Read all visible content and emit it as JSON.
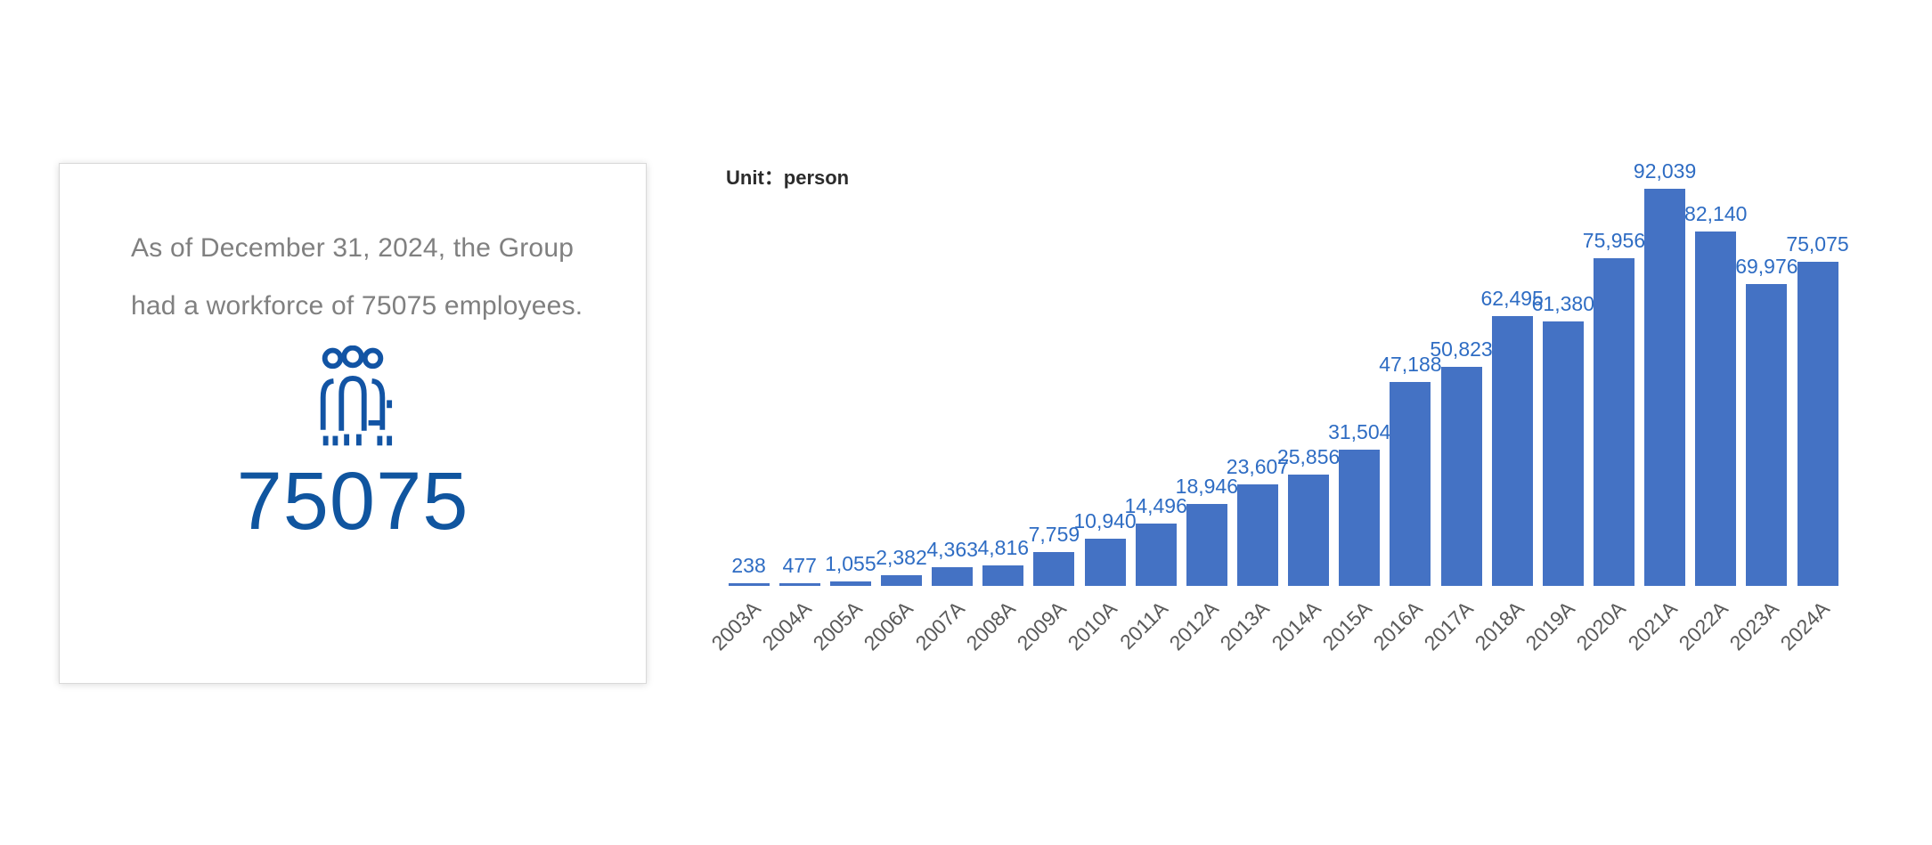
{
  "card": {
    "text": "As of December 31, 2024, the Group had a workforce of 75075 employees.",
    "count": "75075",
    "icon": "people-group-icon",
    "text_color": "#808080",
    "accent_color": "#10559F"
  },
  "chart": {
    "unit_label": "Unit：person"
  },
  "chart_data": {
    "type": "bar",
    "title": "",
    "xlabel": "",
    "ylabel": "Unit: person",
    "categories": [
      "2003A",
      "2004A",
      "2005A",
      "2006A",
      "2007A",
      "2008A",
      "2009A",
      "2010A",
      "2011A",
      "2012A",
      "2013A",
      "2014A",
      "2015A",
      "2016A",
      "2017A",
      "2018A",
      "2019A",
      "2020A",
      "2021A",
      "2022A",
      "2023A",
      "2024A"
    ],
    "values": [
      238,
      477,
      1055,
      2382,
      4363,
      4816,
      7759,
      10940,
      14496,
      18946,
      23607,
      25856,
      31504,
      47188,
      50823,
      62495,
      61380,
      75956,
      92039,
      82140,
      69976,
      75075
    ],
    "ylim": [
      0,
      92039
    ],
    "grid": false,
    "legend_position": "none",
    "bar_color": "#4472C4",
    "label_color": "#2E6CC3",
    "axis_label_color": "#595959",
    "data_labels": true
  }
}
